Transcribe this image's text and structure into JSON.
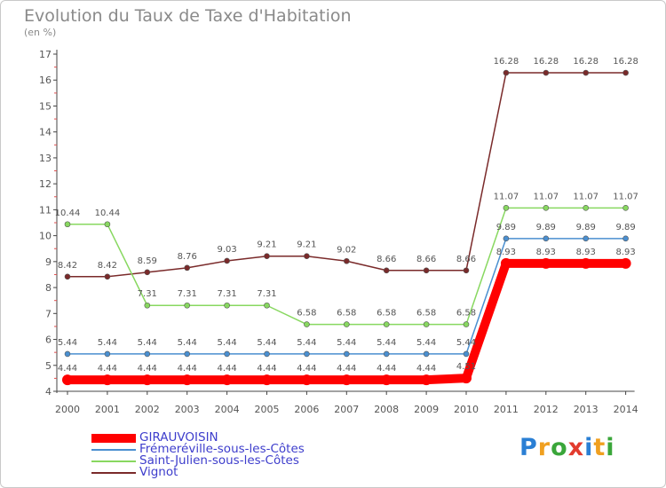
{
  "title": "Evolution du Taux de Taxe d'Habitation",
  "unit": "(en %)",
  "logo": {
    "text": "Proxiti",
    "colors": [
      "#2a7fd4",
      "#f0a020",
      "#3aa63a",
      "#e23b2e",
      "#2a7fd4",
      "#f0a020",
      "#3aa63a"
    ]
  },
  "chart_data": {
    "type": "line",
    "title": "Evolution du Taux de Taxe d'Habitation",
    "ylabel": "(en %)",
    "xlabel": "",
    "x": [
      "2000",
      "2001",
      "2002",
      "2003",
      "2004",
      "2005",
      "2006",
      "2007",
      "2008",
      "2009",
      "2010",
      "2011",
      "2012",
      "2013",
      "2014"
    ],
    "ylim": [
      4,
      17
    ],
    "yticks": [
      4,
      5,
      6,
      7,
      8,
      9,
      10,
      11,
      12,
      13,
      14,
      15,
      16,
      17
    ],
    "grid": false,
    "legend": "bottom-left",
    "series": [
      {
        "name": "GIRAUVOISIN",
        "color": "#ff0000",
        "values": [
          4.44,
          4.44,
          4.44,
          4.44,
          4.44,
          4.44,
          4.44,
          4.44,
          4.44,
          4.44,
          4.51,
          8.93,
          8.93,
          8.93,
          8.93
        ],
        "labels": [
          "4.44",
          "4.44",
          "4.44",
          "4.44",
          "4.44",
          "4.44",
          "4.44",
          "4.44",
          "4.44",
          "4.44",
          "4.51",
          "8.93",
          "8.93",
          "8.93",
          "8.93"
        ]
      },
      {
        "name": "Frémeréville-sous-les-Côtes",
        "color": "#4a8fd0",
        "values": [
          5.44,
          5.44,
          5.44,
          5.44,
          5.44,
          5.44,
          5.44,
          5.44,
          5.44,
          5.44,
          5.44,
          9.89,
          9.89,
          9.89,
          9.89
        ],
        "labels": [
          "5.44",
          "5.44",
          "5.44",
          "5.44",
          "5.44",
          "5.44",
          "5.44",
          "5.44",
          "5.44",
          "5.44",
          "5.44",
          "9.89",
          "9.89",
          "9.89",
          "9.89"
        ]
      },
      {
        "name": "Saint-Julien-sous-les-Côtes",
        "color": "#88d860",
        "values": [
          10.44,
          10.44,
          7.31,
          7.31,
          7.31,
          7.31,
          6.58,
          6.58,
          6.58,
          6.58,
          6.58,
          11.07,
          11.07,
          11.07,
          11.07
        ],
        "labels": [
          "10.44",
          "10.44",
          "7.31",
          "7.31",
          "7.31",
          "7.31",
          "6.58",
          "6.58",
          "6.58",
          "6.58",
          "6.58",
          "11.07",
          "11.07",
          "11.07",
          "11.07"
        ]
      },
      {
        "name": "Vignot",
        "color": "#7a2a2a",
        "values": [
          8.42,
          8.42,
          8.59,
          8.76,
          9.03,
          9.21,
          9.21,
          9.02,
          8.66,
          8.66,
          8.66,
          16.28,
          16.28,
          16.28,
          16.28
        ],
        "labels": [
          "8.42",
          "8.42",
          "8.59",
          "8.76",
          "9.03",
          "9.21",
          "9.21",
          "9.02",
          "8.66",
          "8.66",
          "8.66",
          "16.28",
          "16.28",
          "16.28",
          "16.28"
        ]
      }
    ]
  }
}
